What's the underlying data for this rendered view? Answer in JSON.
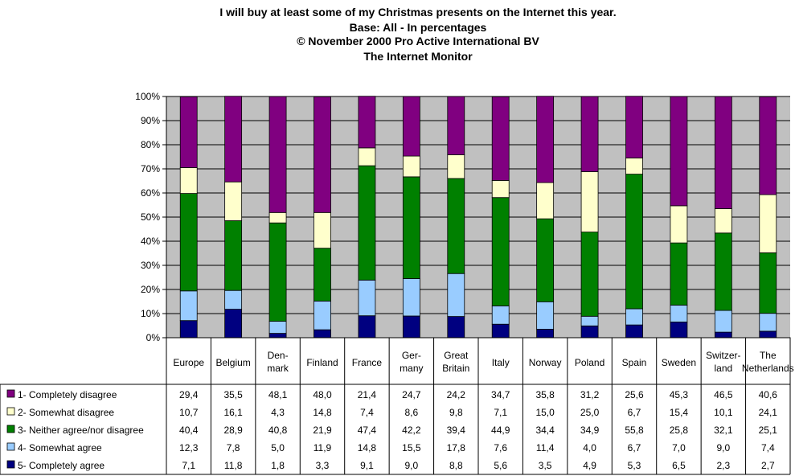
{
  "chart_data": {
    "type": "bar",
    "stacked": true,
    "title": [
      "I will buy at least some of my Christmas presents on the Internet this year.",
      "Base: All - In percentages",
      "© November 2000   Pro Active International BV",
      "The Internet Monitor"
    ],
    "categories": [
      [
        "Europe"
      ],
      [
        "Belgium"
      ],
      [
        "Den-",
        "mark"
      ],
      [
        "Finland"
      ],
      [
        "France"
      ],
      [
        "Ger-",
        "many"
      ],
      [
        "Great",
        "Britain"
      ],
      [
        "Italy"
      ],
      [
        "Norway"
      ],
      [
        "Poland"
      ],
      [
        "Spain"
      ],
      [
        "Sweden"
      ],
      [
        "Switzer-",
        "land"
      ],
      [
        "The",
        "Netherlands"
      ]
    ],
    "ylim": [
      0,
      100
    ],
    "yticks": [
      "0%",
      "10%",
      "20%",
      "30%",
      "40%",
      "50%",
      "60%",
      "70%",
      "80%",
      "90%",
      "100%"
    ],
    "grid": true,
    "plot_background": "#c0c0c0",
    "series": [
      {
        "name": "1- Completely disagree",
        "color": "#800080",
        "values": [
          29.4,
          35.5,
          48.1,
          48.0,
          21.4,
          24.7,
          24.2,
          34.7,
          35.8,
          31.2,
          25.6,
          45.3,
          46.5,
          40.6
        ],
        "labels": [
          "29,4",
          "35,5",
          "48,1",
          "48,0",
          "21,4",
          "24,7",
          "24,2",
          "34,7",
          "35,8",
          "31,2",
          "25,6",
          "45,3",
          "46,5",
          "40,6"
        ]
      },
      {
        "name": "2- Somewhat disagree",
        "color": "#ffffcc",
        "values": [
          10.7,
          16.1,
          4.3,
          14.8,
          7.4,
          8.6,
          9.8,
          7.1,
          15.0,
          25.0,
          6.7,
          15.4,
          10.1,
          24.1
        ],
        "labels": [
          "10,7",
          "16,1",
          "4,3",
          "14,8",
          "7,4",
          "8,6",
          "9,8",
          "7,1",
          "15,0",
          "25,0",
          "6,7",
          "15,4",
          "10,1",
          "24,1"
        ]
      },
      {
        "name": "3- Neither agree/nor disagree",
        "color": "#008000",
        "values": [
          40.4,
          28.9,
          40.8,
          21.9,
          47.4,
          42.2,
          39.4,
          44.9,
          34.4,
          34.9,
          55.8,
          25.8,
          32.1,
          25.1
        ],
        "labels": [
          "40,4",
          "28,9",
          "40,8",
          "21,9",
          "47,4",
          "42,2",
          "39,4",
          "44,9",
          "34,4",
          "34,9",
          "55,8",
          "25,8",
          "32,1",
          "25,1"
        ]
      },
      {
        "name": "4- Somewhat agree",
        "color": "#99ccff",
        "values": [
          12.3,
          7.8,
          5.0,
          11.9,
          14.8,
          15.5,
          17.8,
          7.6,
          11.4,
          4.0,
          6.7,
          7.0,
          9.0,
          7.4
        ],
        "labels": [
          "12,3",
          "7,8",
          "5,0",
          "11,9",
          "14,8",
          "15,5",
          "17,8",
          "7,6",
          "11,4",
          "4,0",
          "6,7",
          "7,0",
          "9,0",
          "7,4"
        ]
      },
      {
        "name": "5- Completely agree",
        "color": "#000080",
        "values": [
          7.1,
          11.8,
          1.8,
          3.3,
          9.1,
          9.0,
          8.8,
          5.6,
          3.5,
          4.9,
          5.3,
          6.5,
          2.3,
          2.7
        ],
        "labels": [
          "7,1",
          "11,8",
          "1,8",
          "3,3",
          "9,1",
          "9,0",
          "8,8",
          "5,6",
          "3,5",
          "4,9",
          "5,3",
          "6,5",
          "2,3",
          "2,7"
        ]
      }
    ],
    "stack_order_bottom_to_top": [
      4,
      3,
      2,
      1,
      0
    ],
    "legend_placement": "data-table-left"
  }
}
